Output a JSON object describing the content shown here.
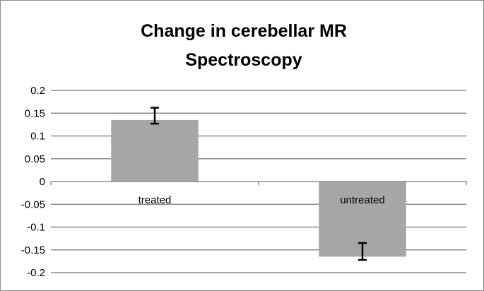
{
  "chart_data": {
    "type": "bar",
    "title_lines": [
      "Change in cerebellar MR",
      "Spectroscopy"
    ],
    "categories": [
      "treated",
      "untreated"
    ],
    "values": [
      0.135,
      -0.165
    ],
    "error_bars": [
      [
        0.127,
        0.162
      ],
      [
        -0.172,
        -0.135
      ]
    ],
    "ylim": [
      -0.2,
      0.2
    ],
    "yticks": [
      "0.2",
      "0.15",
      "0.1",
      "0.05",
      "0",
      "-0.05",
      "-0.1",
      "-0.15",
      "-0.2"
    ],
    "grid": true,
    "legend": "none",
    "bar_color": "#a6a6a6",
    "grid_color": "#8c8c8c"
  }
}
